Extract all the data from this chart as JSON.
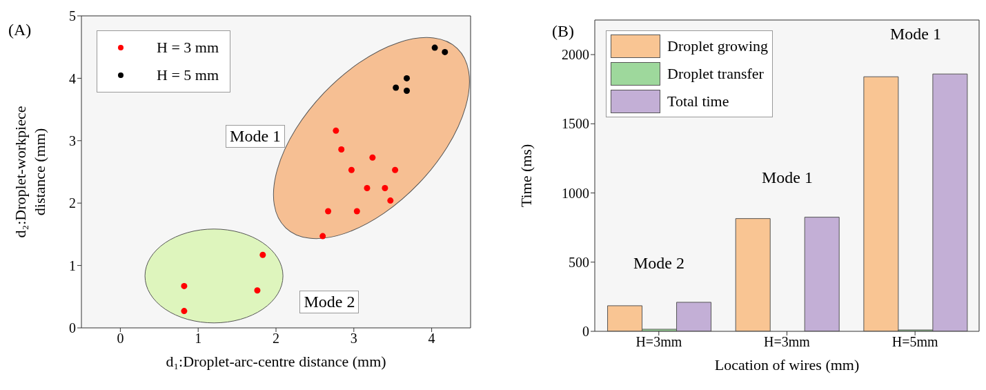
{
  "chart_data": [
    {
      "type": "scatter",
      "xlabel": "d₁:Droplet-arc-centre distance (mm)",
      "ylabel": "d₂:Droplet-workpiece distance (mm)",
      "xlim": [
        -0.5,
        4.5
      ],
      "xticks": [
        0,
        1,
        2,
        3,
        4
      ],
      "ylim": [
        0,
        5
      ],
      "yticks": [
        0,
        1,
        2,
        3,
        4,
        5
      ],
      "grid": false,
      "legend": "top left",
      "marker": "circle",
      "annotations": [
        "(A)",
        "Mode 1",
        "Mode 2"
      ],
      "series": [
        {
          "name": "H = 3 mm",
          "color": "#ff0000",
          "x": [
            0.82,
            0.82,
            1.83,
            1.76,
            2.77,
            2.84,
            2.97,
            3.24,
            3.53,
            3.17,
            3.4,
            3.47,
            2.67,
            3.04,
            2.6
          ],
          "values": [
            0.67,
            0.27,
            1.17,
            0.6,
            3.16,
            2.86,
            2.53,
            2.73,
            2.53,
            2.24,
            2.24,
            2.04,
            1.87,
            1.87,
            1.47
          ]
        },
        {
          "name": "H = 5 mm",
          "color": "#000000",
          "x": [
            3.54,
            3.68,
            3.68,
            4.04,
            4.17
          ],
          "values": [
            3.85,
            4.0,
            3.8,
            4.49,
            4.42
          ]
        }
      ]
    },
    {
      "type": "bar",
      "xlabel": "Location of wires (mm)",
      "ylabel": "Time (ms)",
      "categories": [
        "H=3mm",
        "H=3mm",
        "H=5mm"
      ],
      "ylim": [
        0,
        2250
      ],
      "yticks": [
        0,
        500,
        1000,
        1500,
        2000
      ],
      "grid": false,
      "legend": "top left",
      "annotations": [
        "(B)",
        "Mode 2",
        "Mode 1",
        "Mode 1"
      ],
      "series": [
        {
          "name": "Droplet growing",
          "color": "#f9c593",
          "values": [
            185,
            815,
            1840
          ]
        },
        {
          "name": "Droplet transfer",
          "color": "#9ed89c",
          "values": [
            15,
            null,
            10
          ]
        },
        {
          "name": "Total time",
          "color": "#c3afd6",
          "values": [
            210,
            825,
            1860
          ]
        }
      ]
    }
  ]
}
